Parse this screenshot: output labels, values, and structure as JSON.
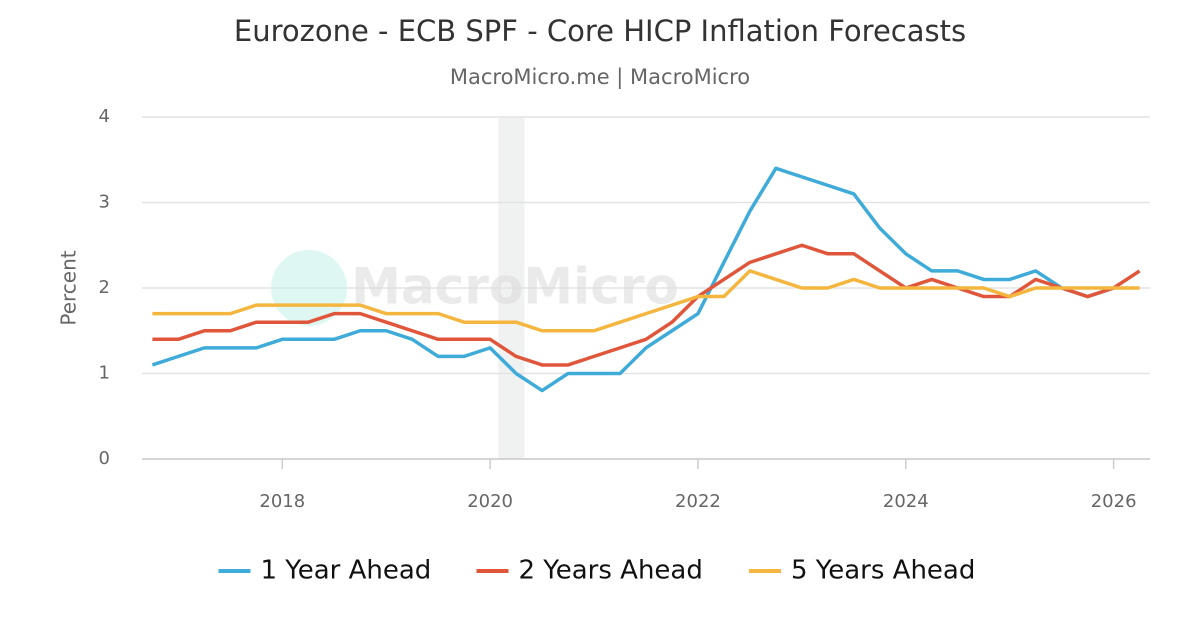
{
  "chart_data": {
    "type": "line",
    "title": "Eurozone - ECB SPF - Core HICP Inflation Forecasts",
    "subtitle": "MacroMicro.me | MacroMicro",
    "watermark": "MacroMicro",
    "y_label": "Percent",
    "x": [
      2016.75,
      2017,
      2017.25,
      2017.5,
      2017.75,
      2018,
      2018.25,
      2018.5,
      2018.75,
      2019,
      2019.25,
      2019.5,
      2019.75,
      2020,
      2020.25,
      2020.5,
      2020.75,
      2021,
      2021.25,
      2021.5,
      2021.75,
      2022,
      2022.25,
      2022.5,
      2022.75,
      2023,
      2023.25,
      2023.5,
      2023.75,
      2024,
      2024.25,
      2024.5,
      2024.75,
      2025,
      2025.25,
      2025.5,
      2025.75,
      2026,
      2026.25
    ],
    "series": [
      {
        "name": "1 Year Ahead",
        "color": "#3fabd8",
        "values": [
          1.1,
          1.2,
          1.3,
          1.3,
          1.3,
          1.4,
          1.4,
          1.4,
          1.5,
          1.5,
          1.4,
          1.2,
          1.2,
          1.3,
          1.0,
          0.8,
          1.0,
          1.0,
          1.0,
          1.3,
          1.5,
          1.7,
          2.3,
          2.9,
          3.4,
          3.3,
          3.2,
          3.1,
          2.7,
          2.4,
          2.2,
          2.2,
          2.1,
          2.1,
          2.2,
          2.0,
          1.9,
          2.0,
          null
        ]
      },
      {
        "name": "2 Years Ahead",
        "color": "#e0563b",
        "values": [
          1.4,
          1.4,
          1.5,
          1.5,
          1.6,
          1.6,
          1.6,
          1.7,
          1.7,
          1.6,
          1.5,
          1.4,
          1.4,
          1.4,
          1.2,
          1.1,
          1.1,
          1.2,
          1.3,
          1.4,
          1.6,
          1.9,
          2.1,
          2.3,
          2.4,
          2.5,
          2.4,
          2.4,
          2.2,
          2.0,
          2.1,
          2.0,
          1.9,
          1.9,
          2.1,
          2.0,
          1.9,
          2.0,
          2.2
        ]
      },
      {
        "name": "5 Years Ahead",
        "color": "#f4b63f",
        "values": [
          1.7,
          1.7,
          1.7,
          1.7,
          1.8,
          1.8,
          1.8,
          1.8,
          1.8,
          1.7,
          1.7,
          1.7,
          1.6,
          1.6,
          1.6,
          1.5,
          1.5,
          1.5,
          1.6,
          1.7,
          1.8,
          1.9,
          1.9,
          2.2,
          2.1,
          2.0,
          2.0,
          2.1,
          2.0,
          2.0,
          2.0,
          2.0,
          2.0,
          1.9,
          2.0,
          2.0,
          2.0,
          2.0,
          2.0
        ]
      }
    ],
    "shaded_ranges": [
      [
        2020.08,
        2020.33
      ]
    ],
    "xlim": [
      2016.65,
      2026.35
    ],
    "xticks": [
      2018,
      2020,
      2022,
      2024,
      2026
    ],
    "ylim": [
      0,
      4
    ],
    "yticks": [
      0,
      1,
      2,
      3,
      4
    ],
    "grid": true,
    "legend": "bottom"
  }
}
